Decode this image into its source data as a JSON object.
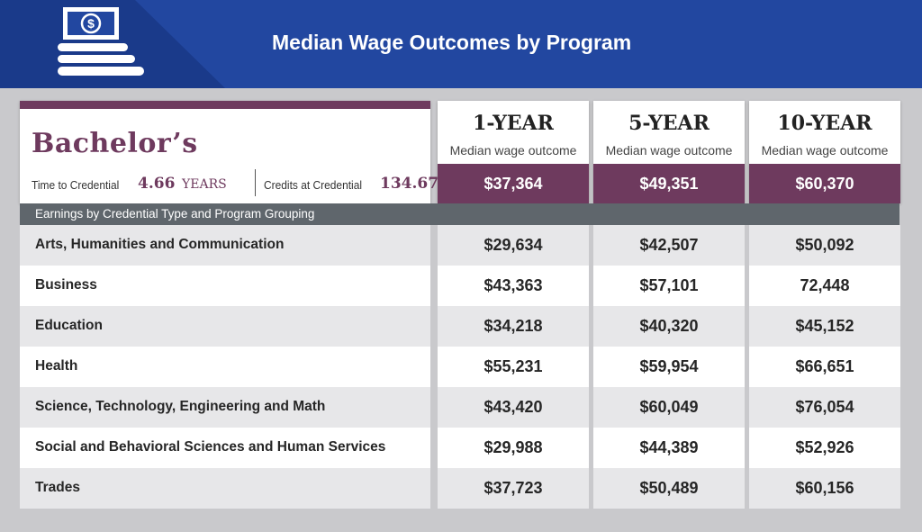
{
  "header": {
    "title": "Median Wage Outcomes by Program"
  },
  "credential": {
    "degree": "Bachelor’s",
    "time_label": "Time to Credential",
    "time_value": "4.66",
    "time_unit": "YEARS",
    "credits_label": "Credits at Credential",
    "credits_value": "134.67"
  },
  "columns": [
    {
      "year": "1-YEAR",
      "subtitle": "Median wage outcome",
      "median": "$37,364"
    },
    {
      "year": "5-YEAR",
      "subtitle": "Median wage outcome",
      "median": "$49,351"
    },
    {
      "year": "10-YEAR",
      "subtitle": "Median wage outcome",
      "median": "$60,370"
    }
  ],
  "section_label": "Earnings by Credential Type and Program Grouping",
  "rows": [
    {
      "program": "Arts, Humanities and Communication",
      "values": [
        "$29,634",
        "$42,507",
        "$50,092"
      ]
    },
    {
      "program": "Business",
      "values": [
        "$43,363",
        "$57,101",
        "72,448"
      ]
    },
    {
      "program": "Education",
      "values": [
        "$34,218",
        "$40,320",
        "$45,152"
      ]
    },
    {
      "program": "Health",
      "values": [
        "$55,231",
        "$59,954",
        "$66,651"
      ]
    },
    {
      "program": "Science, Technology, Engineering and Math",
      "values": [
        "$43,420",
        "$60,049",
        "$76,054"
      ]
    },
    {
      "program": "Social and Behavioral Sciences and Human Services",
      "values": [
        "$29,988",
        "$44,389",
        "$52,926"
      ]
    },
    {
      "program": "Trades",
      "values": [
        "$37,723",
        "$50,489",
        "$60,156"
      ]
    }
  ],
  "colors": {
    "banner": "#2247a0",
    "accent": "#6e3a5e",
    "section_bar": "#5f666c"
  },
  "icons": {
    "logo": "money-stack-icon"
  }
}
